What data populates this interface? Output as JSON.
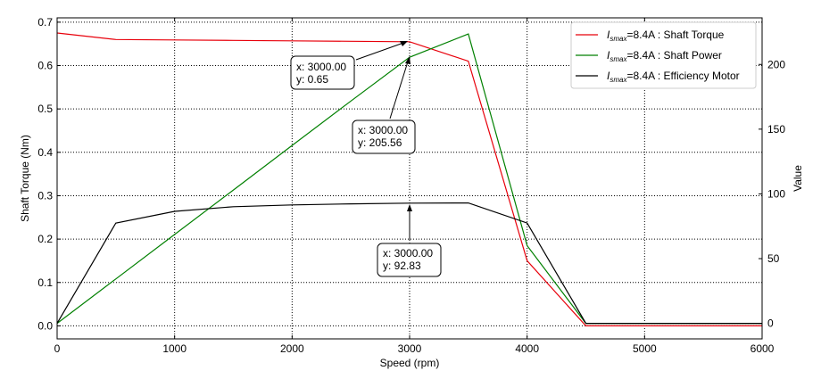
{
  "chart_data": {
    "type": "line",
    "xlabel": "Speed  (rpm)",
    "ylabel_left": "Shaft Torque  (Nm)",
    "ylabel_right": "Value",
    "xlim": [
      0,
      6000
    ],
    "ylim_left": [
      -0.03,
      0.71
    ],
    "ylim_right": [
      -12,
      236
    ],
    "xticks": [
      0,
      1000,
      2000,
      3000,
      4000,
      5000,
      6000
    ],
    "xtick_labels": [
      "0",
      "1000",
      "2000",
      "3000",
      "4000",
      "5000",
      "6000"
    ],
    "yticks_left": [
      0.0,
      0.1,
      0.2,
      0.3,
      0.4,
      0.5,
      0.6,
      0.7
    ],
    "ytick_labels_left": [
      "0.0",
      "0.1",
      "0.2",
      "0.3",
      "0.4",
      "0.5",
      "0.6",
      "0.7"
    ],
    "yticks_right": [
      0,
      50,
      100,
      150,
      200
    ],
    "ytick_labels_right": [
      "0",
      "50",
      "100",
      "150",
      "200"
    ],
    "grid": true,
    "legend_position": "top-right",
    "series": [
      {
        "name_prefix": "I",
        "name_subscript": "smax",
        "name_rest": "=8.4A : Shaft Torque",
        "color": "#e8000b",
        "axis": "left",
        "x": [
          0,
          500,
          1000,
          1500,
          2000,
          2500,
          3000,
          3500,
          4000,
          4500,
          5000,
          5500,
          6000
        ],
        "y": [
          0.675,
          0.66,
          0.659,
          0.658,
          0.657,
          0.656,
          0.655,
          0.61,
          0.15,
          0.0,
          0.0,
          0.0,
          0.0
        ]
      },
      {
        "name_prefix": "I",
        "name_subscript": "smax",
        "name_rest": "=8.4A : Shaft Power",
        "color": "#008000",
        "axis": "right",
        "x": [
          0,
          500,
          1000,
          1500,
          2000,
          2500,
          3000,
          3500,
          4000,
          4500,
          5000,
          5500,
          6000
        ],
        "y": [
          0,
          34.3,
          68.7,
          103,
          137.4,
          171.7,
          205.56,
          223.5,
          60,
          0,
          0,
          0,
          0
        ]
      },
      {
        "name_prefix": "I",
        "name_subscript": "smax",
        "name_rest": "=8.4A : Efficiency Motor",
        "color": "#000000",
        "axis": "right",
        "x": [
          0,
          500,
          1000,
          1500,
          2000,
          2500,
          3000,
          3500,
          4000,
          4500,
          5000,
          5500,
          6000
        ],
        "y": [
          0,
          77.5,
          86.5,
          90.1,
          91.5,
          92.3,
          92.83,
          93,
          77.5,
          0,
          0,
          0,
          0
        ]
      }
    ],
    "annotations": [
      {
        "line1": "x: 3000.00",
        "line2": "y: 0.65"
      },
      {
        "line1": "x: 3000.00",
        "line2": "y: 205.56"
      },
      {
        "line1": "x: 3000.00",
        "line2": "y: 92.83"
      }
    ]
  }
}
